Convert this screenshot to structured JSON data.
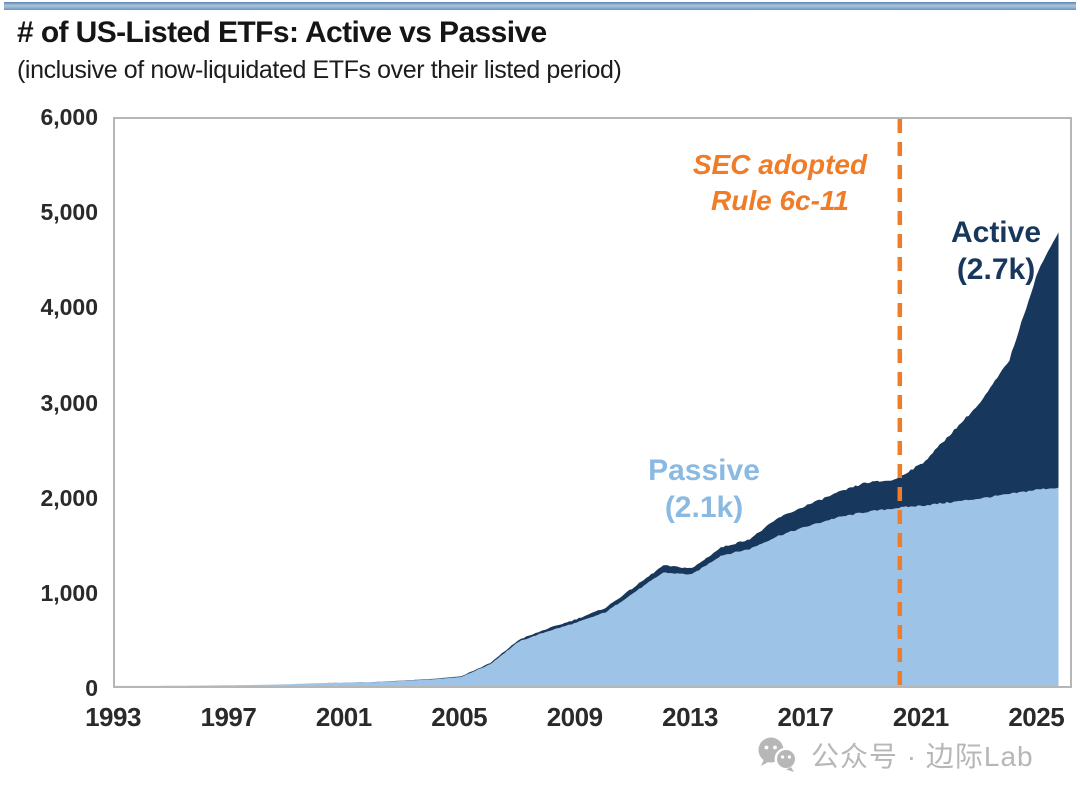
{
  "header": {
    "title": "# of US-Listed ETFs: Active vs Passive",
    "subtitle": "(inclusive of now-liquidated ETFs over their listed period)"
  },
  "chart_data": {
    "type": "area",
    "stacked": true,
    "title": "# of US-Listed ETFs: Active vs Passive",
    "subtitle": "(inclusive of now-liquidated ETFs over their listed period)",
    "xlabel": "",
    "ylabel": "",
    "xlim": [
      1993,
      2026.1
    ],
    "ylim": [
      0,
      6000
    ],
    "grid": false,
    "legend_position": "inline-labels",
    "x": [
      1993,
      1994,
      1995,
      1996,
      1997,
      1998,
      1999,
      2000,
      2001,
      2002,
      2003,
      2004,
      2005,
      2006,
      2007,
      2008,
      2009,
      2010,
      2011,
      2012,
      2013,
      2014,
      2015,
      2016,
      2017,
      2018,
      2019,
      2020,
      2021,
      2022,
      2023,
      2024,
      2025,
      2025.7
    ],
    "series": [
      {
        "name": "Passive",
        "color": "#9dc3e6",
        "values": [
          1,
          1,
          2,
          5,
          8,
          12,
          18,
          30,
          35,
          40,
          55,
          70,
          95,
          230,
          470,
          580,
          670,
          780,
          990,
          1200,
          1180,
          1380,
          1450,
          1590,
          1690,
          1780,
          1840,
          1880,
          1910,
          1945,
          1985,
          2030,
          2080,
          2100
        ]
      },
      {
        "name": "Active",
        "color": "#17375d",
        "values": [
          0,
          0,
          0,
          0,
          0,
          0,
          0,
          0,
          1,
          2,
          3,
          5,
          8,
          12,
          20,
          28,
          38,
          48,
          58,
          75,
          65,
          85,
          105,
          190,
          225,
          260,
          310,
          300,
          450,
          735,
          1015,
          1420,
          2320,
          2700
        ]
      }
    ],
    "yticks": [
      {
        "value": 0,
        "label": "0"
      },
      {
        "value": 1000,
        "label": "1,000"
      },
      {
        "value": 2000,
        "label": "2,000"
      },
      {
        "value": 3000,
        "label": "3,000"
      },
      {
        "value": 4000,
        "label": "4,000"
      },
      {
        "value": 5000,
        "label": "5,000"
      },
      {
        "value": 6000,
        "label": "6,000"
      }
    ],
    "xticks": [
      "1993",
      "1997",
      "2001",
      "2005",
      "2009",
      "2013",
      "2017",
      "2021",
      "2025"
    ],
    "vline": {
      "x": 2020.2,
      "color": "#f07c28",
      "style": "dashed"
    },
    "annotations": [
      {
        "id": "sec_note",
        "text": "SEC adopted\nRule 6c-11",
        "color": "#f07c28"
      },
      {
        "id": "active_label",
        "text": "Active\n(2.7k)",
        "color": "#17375d"
      },
      {
        "id": "passive_label",
        "text": "Passive\n(2.1k)",
        "color": "#8ab9e2"
      }
    ]
  },
  "colors": {
    "passive_area": "#9dc3e6",
    "active_area": "#17375d",
    "accent_orange": "#f07c28",
    "axis_text": "#2a2a2a",
    "plot_border": "#b6b6b6",
    "watermark_gray": "#b7b7b7"
  },
  "watermark": {
    "icon": "wechat-icon",
    "text": "公众号 · 边际Lab"
  }
}
